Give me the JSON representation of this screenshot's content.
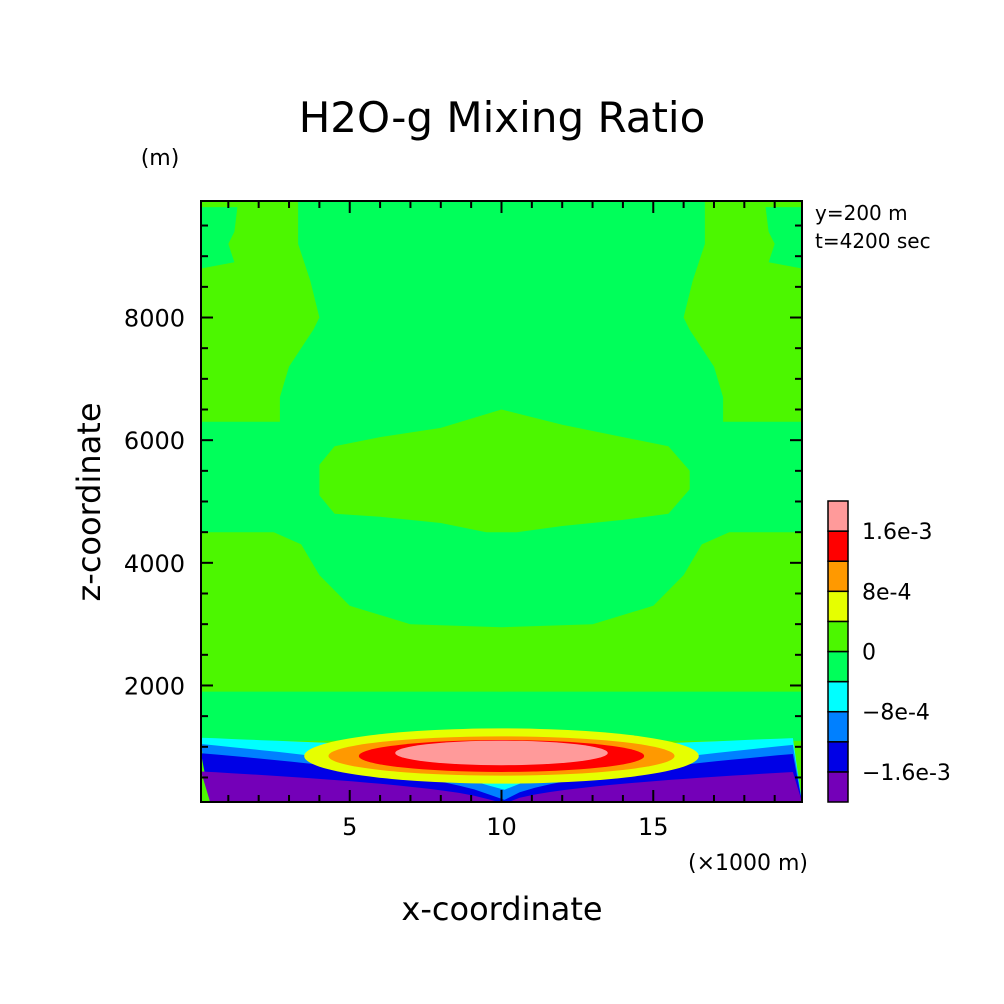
{
  "chart_data": {
    "type": "contour",
    "title": "H2O-g Mixing Ratio",
    "xlabel": "x-coordinate",
    "ylabel": "z-coordinate",
    "x_unit": "(×1000 m)",
    "y_unit": "(m)",
    "annotations": [
      "y=200 m",
      "t=4200 sec"
    ],
    "xlim": [
      0.1,
      19.9
    ],
    "ylim": [
      100,
      9900
    ],
    "xticks": [
      5,
      10,
      15
    ],
    "yticks": [
      2000,
      4000,
      6000,
      8000
    ],
    "grid": false,
    "colorbar": {
      "placement": "right",
      "levels": [
        {
          "upper": -0.0016,
          "color": "#7400b8"
        },
        {
          "upper": -0.0012,
          "color": "#0000e6"
        },
        {
          "upper": -0.0008,
          "color": "#0080ff"
        },
        {
          "upper": -0.0004,
          "color": "#00ffff"
        },
        {
          "upper": 0,
          "color": "#00ff5a"
        },
        {
          "upper": 0.0004,
          "color": "#4cf700"
        },
        {
          "upper": 0.0008,
          "color": "#e6ff00"
        },
        {
          "upper": 0.0012,
          "color": "#ff9900"
        },
        {
          "upper": 0.0016,
          "color": "#ff0000"
        },
        {
          "upper": null,
          "color": "#ff9a9a"
        }
      ],
      "labels": [
        {
          "text": "1.6e-3",
          "value": 0.0016
        },
        {
          "text": "8e-4",
          "value": 0.0008
        },
        {
          "text": "0",
          "value": 0
        },
        {
          "text": "−8e-4",
          "value": -0.0008
        },
        {
          "text": "−1.6e-3",
          "value": -0.0016
        }
      ]
    },
    "regions": [
      {
        "level": "0 to 4e-4",
        "color": "#4cf700",
        "x_range": [
          0.1,
          19.9
        ],
        "z_range": [
          100,
          9900
        ]
      },
      {
        "level": "-4e-4 to 0",
        "color": "#00ff5a",
        "description": "central upper column above 6300 m",
        "x_range": [
          3.5,
          16.5
        ],
        "z_range": [
          6300,
          9900
        ]
      },
      {
        "level": "-4e-4 to 0",
        "color": "#00ff5a",
        "description": "band between 4400 and 6500 m around center",
        "x_range": [
          0.1,
          19.9
        ],
        "z_range": [
          4400,
          6500
        ]
      },
      {
        "level": "-4e-4 to 0",
        "color": "#00ff5a",
        "description": "band between 2900 and 4400 m",
        "x_range": [
          0.1,
          19.9
        ],
        "z_range": [
          2900,
          4400
        ]
      },
      {
        "level": "-4e-4 to 0",
        "color": "#00ff5a",
        "description": "lower band 1100 to 1900 m",
        "x_range": [
          0.1,
          19.9
        ],
        "z_range": [
          1100,
          1900
        ]
      },
      {
        "level": "-4e-4 to 0",
        "color": "#00ff5a",
        "description": "upper-corner pockets",
        "x_range": [
          0.1,
          1.3
        ],
        "z_range": [
          8800,
          9800
        ]
      },
      {
        "level": "4e-4 to 8e-4",
        "color": "#e6ff00",
        "description": "low-level warm lens",
        "x_center": 10,
        "z_center": 850,
        "x_half_width": 6.5,
        "z_half_height": 450
      },
      {
        "level": "8e-4 to 1.2e-3",
        "color": "#ff9900",
        "x_center": 10,
        "z_center": 850,
        "x_half_width": 5.7,
        "z_half_height": 320
      },
      {
        "level": "1.2e-3 to 1.6e-3",
        "color": "#ff0000",
        "x_center": 10,
        "z_center": 850,
        "x_half_width": 4.7,
        "z_half_height": 260
      },
      {
        "level": "> 1.6e-3",
        "color": "#ff9a9a",
        "x_center": 10,
        "z_center": 900,
        "x_half_width": 3.5,
        "z_half_height": 200
      },
      {
        "level": "< -1.6e-3",
        "color": "#7400b8",
        "description": "bottom corners",
        "x_range": [
          0.1,
          2.5
        ],
        "z_range": [
          100,
          600
        ]
      }
    ]
  }
}
